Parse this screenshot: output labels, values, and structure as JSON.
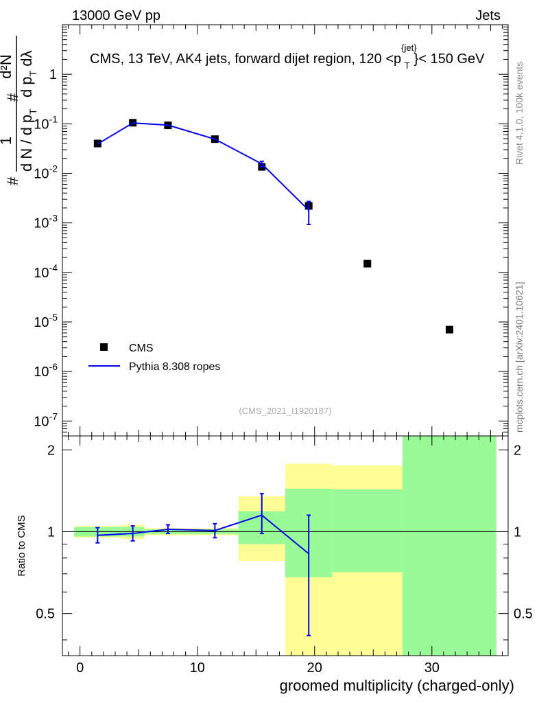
{
  "header": {
    "left": "13000 GeV pp",
    "right": "Jets"
  },
  "side_labels": {
    "rivet": "Rivet 4.1.0,  100k events",
    "mcplots": "mcplots.cern.ch [arXiv:2401.10621]"
  },
  "watermark": "(CMS_2021_I1920187)",
  "chart_data": [
    {
      "type": "scatter",
      "title": "CMS, 13 TeV, AK4 jets, forward dijet region, 120 <p",
      "title_sup": "{jet}",
      "title_sub": "T",
      "title_end": "}< 150 GeV",
      "ylabel": {
        "lead": "#",
        "frac_num": "1",
        "frac_den": "d N / d p",
        "frac_den_sub": "T",
        "hash2": "#",
        "frac2_num": "d²N",
        "frac2_den": "d p",
        "frac2_den_sub": "T",
        "frac2_den_end": " dλ"
      },
      "yscale": "log",
      "ylim": [
        5e-08,
        10
      ],
      "xlim": [
        -1.5,
        36.5
      ],
      "y_tick_labels": [
        {
          "base": "10",
          "exp": "-7",
          "value": 1e-07
        },
        {
          "base": "10",
          "exp": "-6",
          "value": 1e-06
        },
        {
          "base": "10",
          "exp": "-5",
          "value": 1e-05
        },
        {
          "base": "10",
          "exp": "-4",
          "value": 0.0001
        },
        {
          "base": "10",
          "exp": "-3",
          "value": 0.001
        },
        {
          "base": "10",
          "exp": "-2",
          "value": 0.01
        },
        {
          "base": "10",
          "exp": "-1",
          "value": 0.1
        },
        {
          "base": "1",
          "exp": "",
          "value": 1
        }
      ],
      "legend": {
        "position": "lower-left",
        "entries": [
          "CMS",
          "Pythia 8.308 ropes"
        ]
      },
      "series": [
        {
          "name": "CMS",
          "marker": "square",
          "color": "#000000",
          "x": [
            1.5,
            4.5,
            7.5,
            11.5,
            15.5,
            19.5,
            24.5,
            31.5
          ],
          "y": [
            0.04,
            0.105,
            0.093,
            0.049,
            0.0135,
            0.0022,
            0.00015,
            7e-06
          ]
        },
        {
          "name": "Pythia 8.308 ropes",
          "marker": "line",
          "color": "#0000ee",
          "x": [
            1.5,
            4.5,
            7.5,
            11.5,
            15.5,
            19.5
          ],
          "y": [
            0.039,
            0.104,
            0.094,
            0.049,
            0.0155,
            0.0018
          ],
          "yerr_low": [
            0.039,
            0.104,
            0.094,
            0.049,
            0.0137,
            0.00093
          ],
          "yerr_high": [
            0.039,
            0.104,
            0.094,
            0.049,
            0.0175,
            0.0027
          ]
        }
      ]
    },
    {
      "type": "line",
      "ylabel": "Ratio to CMS",
      "xlabel": "groomed multiplicity (charged-only)",
      "xlim": [
        -1.5,
        36.5
      ],
      "ylim": [
        0.35,
        2.25
      ],
      "x_ticks": [
        0,
        10,
        20,
        30
      ],
      "x_tick_labels": [
        "0",
        "10",
        "20",
        "30"
      ],
      "y_ticks": [
        0.5,
        1,
        2
      ],
      "y_tick_labels": [
        "0.5",
        "1",
        "2"
      ],
      "reference_line": 1,
      "bands": [
        {
          "x0": -0.5,
          "x1": 3.5,
          "yellow": [
            0.95,
            1.05
          ],
          "green": [
            0.96,
            1.04
          ]
        },
        {
          "x0": 3.5,
          "x1": 5.5,
          "yellow": [
            0.94,
            1.06
          ],
          "green": [
            0.96,
            1.04
          ]
        },
        {
          "x0": 5.5,
          "x1": 13.5,
          "yellow": [
            0.97,
            1.03
          ],
          "green": [
            0.98,
            1.02
          ]
        },
        {
          "x0": 13.5,
          "x1": 17.5,
          "yellow": [
            0.78,
            1.35
          ],
          "green": [
            0.9,
            1.19
          ]
        },
        {
          "x0": 17.5,
          "x1": 21.5,
          "yellow": [
            0.35,
            1.78
          ],
          "green": [
            0.68,
            1.44
          ]
        },
        {
          "x0": 21.5,
          "x1": 27.5,
          "yellow": [
            0.35,
            1.75
          ],
          "green": [
            0.71,
            1.43
          ]
        },
        {
          "x0": 27.5,
          "x1": 35.5,
          "yellow": [
            0.35,
            2.25
          ],
          "green": [
            0.35,
            2.25
          ]
        }
      ],
      "band_colors": {
        "yellow": "#fdfd96",
        "green": "#99fb98"
      },
      "series": [
        {
          "name": "Pythia 8.308 ropes",
          "color": "#0000ee",
          "x": [
            1.5,
            4.5,
            7.5,
            11.5,
            15.5,
            19.5
          ],
          "y": [
            0.97,
            0.985,
            1.02,
            1.01,
            1.15,
            0.83
          ],
          "yerr_low": [
            0.91,
            0.925,
            0.985,
            0.95,
            0.985,
            0.415
          ],
          "yerr_high": [
            1.035,
            1.05,
            1.06,
            1.07,
            1.38,
            1.15
          ]
        }
      ]
    }
  ]
}
